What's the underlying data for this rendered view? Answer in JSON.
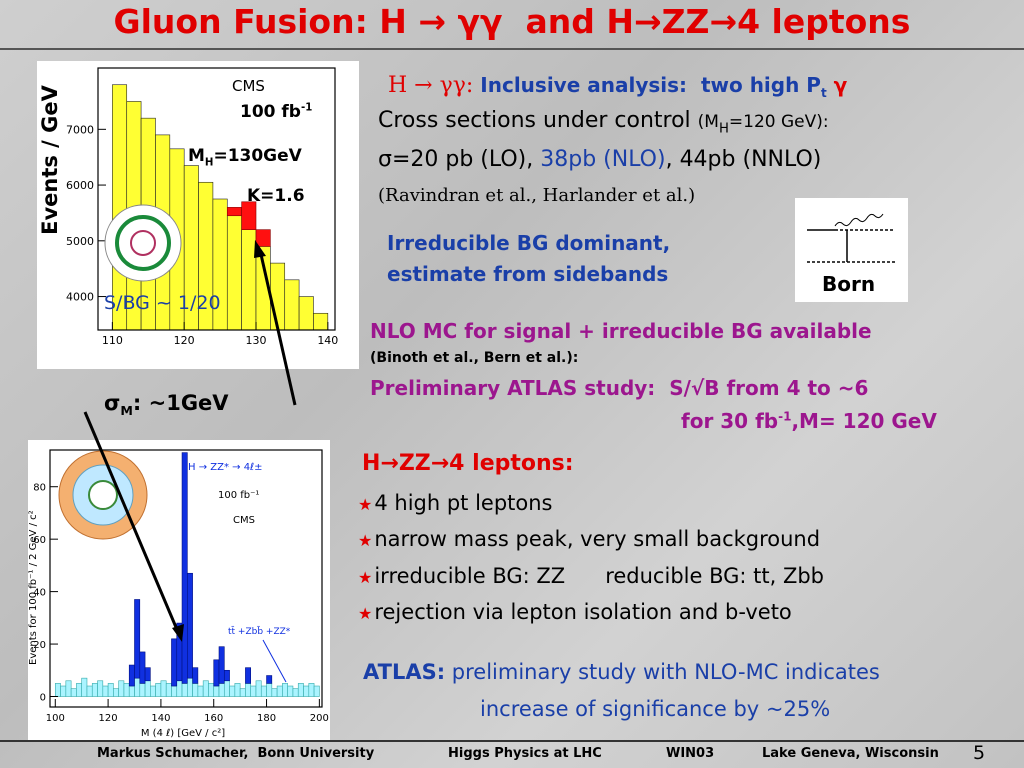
{
  "header": {
    "title": "Gluon Fusion: H → γγ  and H→ZZ→4 leptons"
  },
  "figure_gg": {
    "y_label": "Events / GeV",
    "logo": "CMS",
    "lumi": "100 fb",
    "lumi_sup": "-1",
    "mass": "M",
    "mass_sub": "H",
    "mass_val": "=130GeV",
    "k_factor": "K=1.6",
    "s_bg": "S/BG ~ 1/20",
    "xlim": [
      108,
      141
    ],
    "ylim": [
      3400,
      8100
    ],
    "xticks": [
      110,
      120,
      130,
      140
    ],
    "yticks": [
      4000,
      5000,
      6000,
      7000
    ],
    "bins": [
      110,
      112,
      114,
      116,
      118,
      120,
      122,
      124,
      126,
      128,
      130,
      132,
      134,
      136,
      138,
      140
    ],
    "background": [
      7800,
      7500,
      7200,
      6900,
      6650,
      6350,
      6050,
      5750,
      5450,
      5200,
      4900,
      4600,
      4300,
      4000,
      3700
    ],
    "signal": [
      0,
      0,
      0,
      0,
      0,
      0,
      0,
      0,
      150,
      500,
      300,
      0,
      0,
      0,
      0
    ]
  },
  "resolution": {
    "sigma": "σ",
    "sigma_sub": "M",
    "text": ": ~1GeV"
  },
  "figure_zz": {
    "y_label": "Events for 100 fb⁻¹ / 2 GeV / c²",
    "x_label": "M (4 ℓ)  [GeV / c²]",
    "decay": "H → ZZ* → 4ℓ±",
    "lumi": "100 fb⁻¹",
    "logo": "CMS",
    "bg_label": "tt̄ +Zbb̄ +ZZ*",
    "xlim": [
      98,
      201
    ],
    "ylim": [
      -4,
      94
    ],
    "xticks": [
      100,
      120,
      140,
      160,
      180,
      200
    ],
    "yticks": [
      0,
      20,
      40,
      60,
      80
    ],
    "bins": [
      100,
      102,
      104,
      106,
      108,
      110,
      112,
      114,
      116,
      118,
      120,
      122,
      124,
      126,
      128,
      130,
      132,
      134,
      136,
      138,
      140,
      142,
      144,
      146,
      148,
      150,
      152,
      154,
      156,
      158,
      160,
      162,
      164,
      166,
      168,
      170,
      172,
      174,
      176,
      178,
      180,
      182,
      184,
      186,
      188,
      190,
      192,
      194,
      196,
      198,
      200
    ],
    "background": [
      5,
      4,
      6,
      3,
      5,
      7,
      4,
      5,
      6,
      4,
      5,
      3,
      6,
      5,
      4,
      7,
      5,
      6,
      4,
      5,
      6,
      5,
      4,
      6,
      5,
      7,
      5,
      4,
      6,
      5,
      4,
      5,
      6,
      4,
      5,
      3,
      5,
      4,
      6,
      4,
      5,
      3,
      4,
      5,
      4,
      3,
      5,
      4,
      5,
      4
    ],
    "signal": [
      0,
      0,
      0,
      0,
      0,
      0,
      0,
      0,
      0,
      0,
      0,
      0,
      0,
      0,
      8,
      30,
      12,
      5,
      0,
      0,
      0,
      0,
      18,
      22,
      88,
      40,
      6,
      0,
      0,
      0,
      10,
      14,
      4,
      0,
      0,
      0,
      6,
      0,
      0,
      0,
      3,
      0,
      0,
      0,
      0,
      0,
      0,
      0,
      0,
      0
    ]
  },
  "gg": {
    "heading_prefix": "H → γγ:",
    "heading": " Inclusive analysis:  two high P",
    "heading_sub": "t",
    "heading_suffix": " γ",
    "cross": "Cross sections under control ",
    "cross_note": "(M",
    "cross_note_sub": "H",
    "cross_note_end": "=120 GeV):",
    "sigma_lo": "σ=20 pb (LO), ",
    "sigma_nlo": "38pb (NLO)",
    "sigma_nnlo": ", 44pb (NNLO)",
    "refs": "(Ravindran et al., Harlander et al.)",
    "irreducible": [
      "Irreducible BG dominant,",
      "estimate from sidebands"
    ],
    "born": "Born",
    "nlo": "NLO MC for signal + irreducible BG available",
    "nlo_refs": "(Binoth et al., Bern et al.):",
    "atlas_line1": "Preliminary ATLAS study:  S/√B from 4 to ~6",
    "atlas_line2": "for 30 fb",
    "atlas_line2_sup": "-1",
    "atlas_line2_end": ",M= 120 GeV"
  },
  "zz": {
    "heading": "H→ZZ→4 leptons:",
    "bullets": [
      "4 high pt leptons",
      "narrow mass peak, very small background",
      "irreducible BG: ZZ      reducible BG: tt, Zbb",
      "rejection via lepton isolation and b-veto"
    ],
    "atlas_label": "ATLAS:",
    "atlas_line1": " preliminary study with NLO-MC indicates",
    "atlas_line2": "increase of significance by ~25%"
  },
  "footer": {
    "author": "Markus Schumacher,  Bonn University",
    "talk": "Higgs Physics at LHC",
    "conf": "WIN03",
    "place": "Lake Geneva, Wisconsin",
    "page": "5"
  }
}
